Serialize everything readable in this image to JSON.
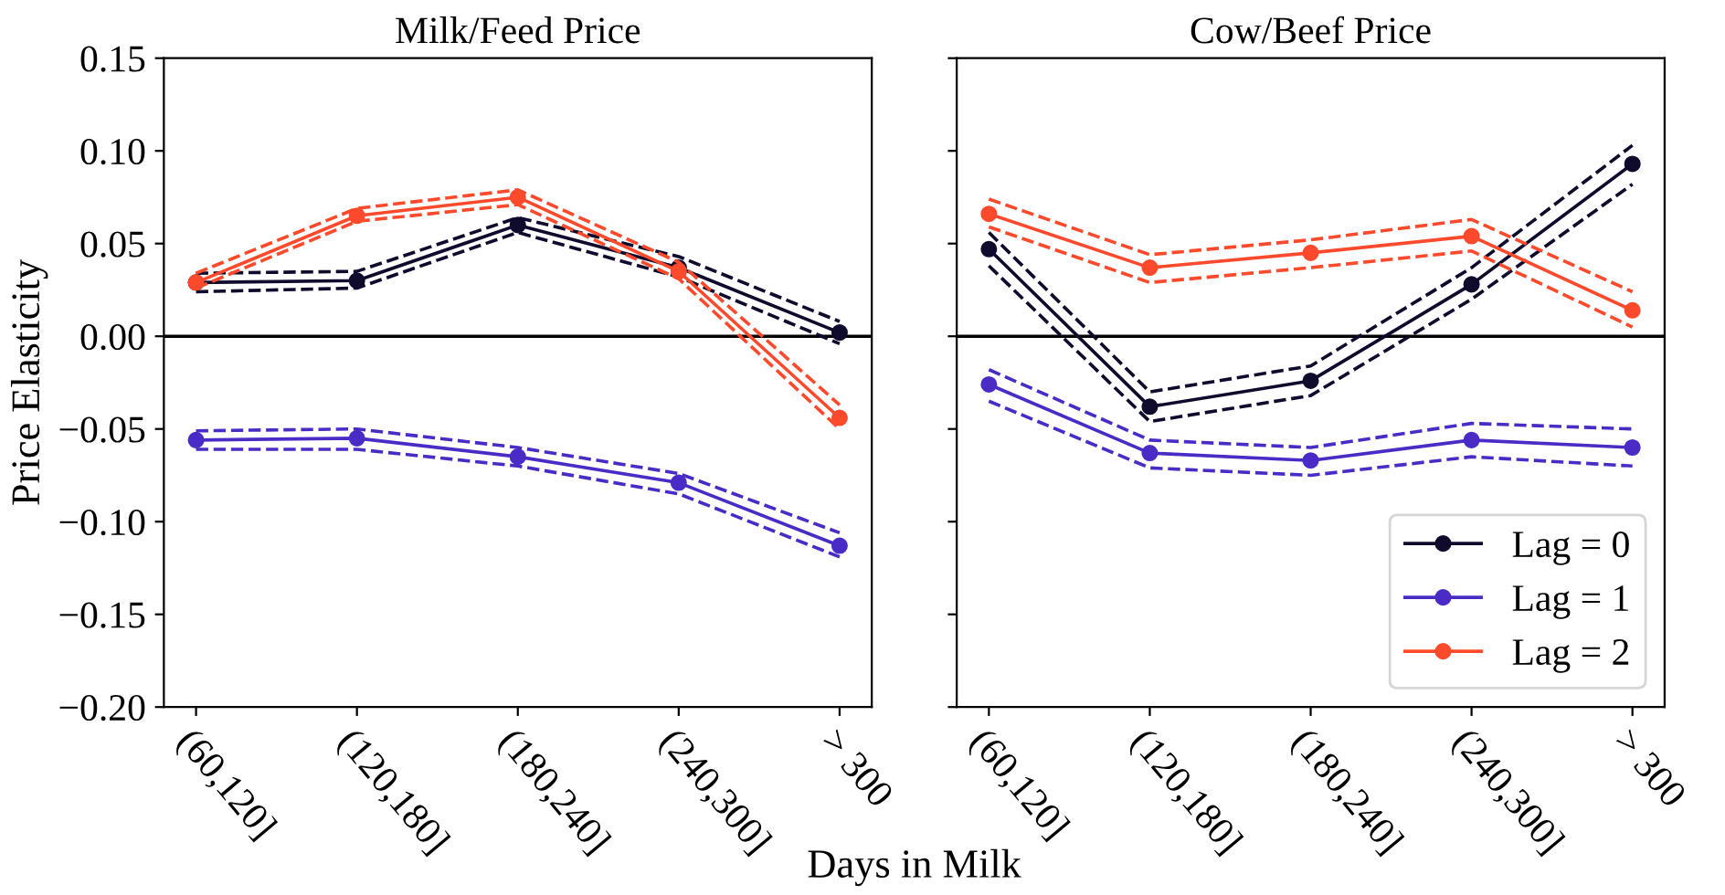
{
  "chart_data": [
    {
      "type": "line",
      "title": "Milk/Feed Price",
      "xlabel": "Days in Milk",
      "ylabel": "Price Elasticity",
      "categories": [
        "(60,120]",
        "(120,180]",
        "(180,240]",
        "(240,300]",
        "> 300"
      ],
      "ylim": [
        -0.2,
        0.15
      ],
      "yticks": [
        {
          "value": -0.2,
          "label": "−0.20"
        },
        {
          "value": -0.15,
          "label": "−0.15"
        },
        {
          "value": -0.1,
          "label": "−0.10"
        },
        {
          "value": -0.05,
          "label": "−0.05"
        },
        {
          "value": 0,
          "label": "0.00"
        },
        {
          "value": 0.05,
          "label": "0.05"
        },
        {
          "value": 0.1,
          "label": "0.10"
        },
        {
          "value": 0.15,
          "label": "0.15"
        }
      ],
      "marker": "circle",
      "line_style": "solid",
      "grid": false,
      "ref_lines": [
        {
          "axis": "y",
          "value": 0,
          "color": "#000000"
        }
      ],
      "series": [
        {
          "color": "#0e0b2c",
          "values": [
            0.029,
            0.03,
            0.06,
            0.037,
            0.002
          ]
        },
        {
          "color": "#0e0b2c",
          "marker": "none",
          "line_style": "dashed",
          "values": [
            0.034,
            0.035,
            0.064,
            0.043,
            0.008
          ]
        },
        {
          "color": "#0e0b2c",
          "marker": "none",
          "line_style": "dashed",
          "values": [
            0.024,
            0.026,
            0.056,
            0.032,
            -0.004
          ]
        },
        {
          "color": "#4a2bc6",
          "values": [
            -0.056,
            -0.055,
            -0.065,
            -0.079,
            -0.113
          ]
        },
        {
          "color": "#4a2bc6",
          "marker": "none",
          "line_style": "dashed",
          "values": [
            -0.051,
            -0.05,
            -0.06,
            -0.074,
            -0.106
          ]
        },
        {
          "color": "#4a2bc6",
          "marker": "none",
          "line_style": "dashed",
          "values": [
            -0.061,
            -0.061,
            -0.07,
            -0.085,
            -0.119
          ]
        },
        {
          "color": "#fd4a2c",
          "values": [
            0.029,
            0.065,
            0.075,
            0.035,
            -0.044
          ]
        },
        {
          "color": "#fd4a2c",
          "marker": "none",
          "line_style": "dashed",
          "values": [
            0.034,
            0.069,
            0.079,
            0.04,
            -0.037
          ]
        },
        {
          "color": "#fd4a2c",
          "marker": "none",
          "line_style": "dashed",
          "values": [
            0.026,
            0.062,
            0.071,
            0.031,
            -0.05
          ]
        }
      ]
    },
    {
      "type": "line",
      "title": "Cow/Beef Price",
      "categories": [
        "(60,120]",
        "(120,180]",
        "(180,240]",
        "(240,300]",
        "> 300"
      ],
      "ylim": [
        -0.2,
        0.15
      ],
      "yticks": [
        -0.2,
        -0.15,
        -0.1,
        -0.05,
        0,
        0.05,
        0.1,
        0.15
      ],
      "tick_labels": "x",
      "marker": "circle",
      "line_style": "solid",
      "grid": false,
      "legend": "bottom right",
      "ref_lines": [
        {
          "axis": "y",
          "value": 0,
          "color": "#000000"
        }
      ],
      "series": [
        {
          "name": "Lag = 0",
          "color": "#0e0b2c",
          "values": [
            0.047,
            -0.038,
            -0.024,
            0.028,
            0.093
          ]
        },
        {
          "color": "#0e0b2c",
          "marker": "none",
          "line_style": "dashed",
          "values": [
            0.056,
            -0.03,
            -0.016,
            0.037,
            0.103
          ]
        },
        {
          "color": "#0e0b2c",
          "marker": "none",
          "line_style": "dashed",
          "values": [
            0.038,
            -0.046,
            -0.032,
            0.02,
            0.082
          ]
        },
        {
          "name": "Lag = 1",
          "color": "#4a2bc6",
          "values": [
            -0.026,
            -0.063,
            -0.067,
            -0.056,
            -0.06
          ]
        },
        {
          "color": "#4a2bc6",
          "marker": "none",
          "line_style": "dashed",
          "values": [
            -0.018,
            -0.056,
            -0.06,
            -0.047,
            -0.05
          ]
        },
        {
          "color": "#4a2bc6",
          "marker": "none",
          "line_style": "dashed",
          "values": [
            -0.035,
            -0.071,
            -0.075,
            -0.065,
            -0.07
          ]
        },
        {
          "name": "Lag = 2",
          "color": "#fd4a2c",
          "values": [
            0.066,
            0.037,
            0.045,
            0.054,
            0.014
          ]
        },
        {
          "color": "#fd4a2c",
          "marker": "none",
          "line_style": "dashed",
          "values": [
            0.074,
            0.044,
            0.052,
            0.063,
            0.024
          ]
        },
        {
          "color": "#fd4a2c",
          "marker": "none",
          "line_style": "dashed",
          "values": [
            0.059,
            0.029,
            0.037,
            0.046,
            0.005
          ]
        }
      ]
    }
  ]
}
